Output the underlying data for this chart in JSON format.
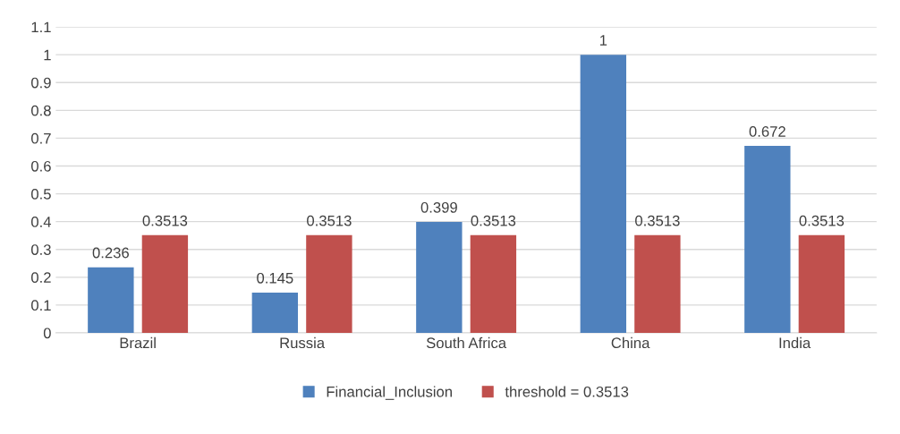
{
  "chart_data": {
    "type": "bar",
    "categories": [
      "Brazil",
      "Russia",
      "South Africa",
      "China",
      "India"
    ],
    "series": [
      {
        "name": "Financial_Inclusion",
        "color": "#4f81bd",
        "values": [
          0.236,
          0.145,
          0.399,
          1,
          0.672
        ]
      },
      {
        "name": "threshold = 0.3513",
        "color": "#c0504d",
        "values": [
          0.3513,
          0.3513,
          0.3513,
          0.3513,
          0.3513
        ]
      }
    ],
    "ylim": [
      0,
      1.1
    ],
    "yticks": [
      0,
      0.1,
      0.2,
      0.3,
      0.4,
      0.5,
      0.6,
      0.7,
      0.8,
      0.9,
      1,
      1.1
    ],
    "grid": "y",
    "legend": "bottom",
    "data_labels": true
  }
}
